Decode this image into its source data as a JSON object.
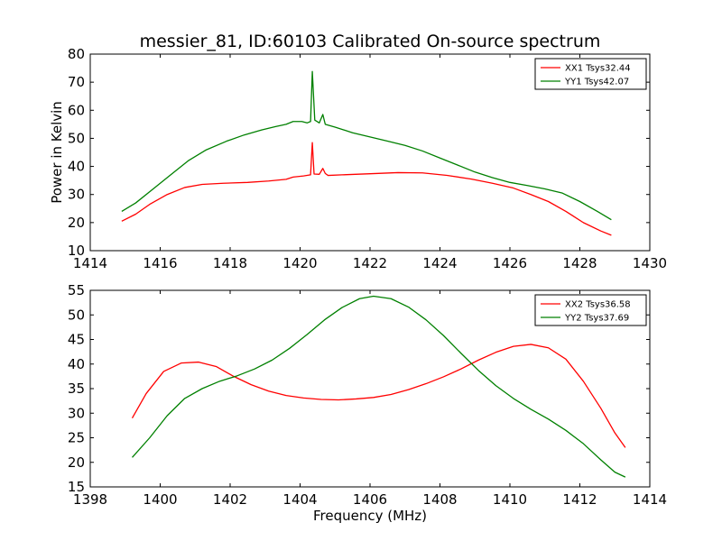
{
  "chart_data": [
    {
      "type": "line",
      "title": "messier_81, ID:60103 Calibrated On-source spectrum",
      "xlabel": "",
      "ylabel": "Power in Kelvin",
      "xlim": [
        1414,
        1430
      ],
      "ylim": [
        10,
        80
      ],
      "xticks": [
        1414,
        1416,
        1418,
        1420,
        1422,
        1424,
        1426,
        1428,
        1430
      ],
      "yticks": [
        10,
        20,
        30,
        40,
        50,
        60,
        70,
        80
      ],
      "legend_position": "top-right",
      "series": [
        {
          "name": "XX1 Tsys32.44",
          "color": "#ff0000",
          "points": [
            [
              1414.9,
              20.5
            ],
            [
              1415.3,
              23
            ],
            [
              1415.7,
              26.5
            ],
            [
              1416.2,
              30
            ],
            [
              1416.7,
              32.5
            ],
            [
              1417.2,
              33.6
            ],
            [
              1417.8,
              34
            ],
            [
              1418.5,
              34.3
            ],
            [
              1419.1,
              34.8
            ],
            [
              1419.6,
              35.4
            ],
            [
              1419.8,
              36.2
            ],
            [
              1420.1,
              36.6
            ],
            [
              1420.3,
              37
            ],
            [
              1420.35,
              48.5
            ],
            [
              1420.4,
              37.3
            ],
            [
              1420.55,
              37.2
            ],
            [
              1420.65,
              39.3
            ],
            [
              1420.72,
              37.5
            ],
            [
              1420.8,
              36.8
            ],
            [
              1421.2,
              37
            ],
            [
              1422,
              37.4
            ],
            [
              1422.8,
              37.8
            ],
            [
              1423.5,
              37.7
            ],
            [
              1424.2,
              36.8
            ],
            [
              1424.9,
              35.5
            ],
            [
              1425.5,
              34
            ],
            [
              1426.1,
              32.3
            ],
            [
              1426.6,
              30
            ],
            [
              1427.1,
              27.5
            ],
            [
              1427.6,
              24
            ],
            [
              1428.1,
              20
            ],
            [
              1428.6,
              17
            ],
            [
              1428.9,
              15.5
            ]
          ]
        },
        {
          "name": "YY1 Tsys42.07",
          "color": "#008000",
          "points": [
            [
              1414.9,
              24
            ],
            [
              1415.3,
              27
            ],
            [
              1415.8,
              32
            ],
            [
              1416.3,
              37
            ],
            [
              1416.8,
              42
            ],
            [
              1417.3,
              45.8
            ],
            [
              1417.9,
              49
            ],
            [
              1418.4,
              51.2
            ],
            [
              1418.9,
              53
            ],
            [
              1419.3,
              54.2
            ],
            [
              1419.6,
              55
            ],
            [
              1419.8,
              56
            ],
            [
              1420.05,
              56
            ],
            [
              1420.2,
              55.5
            ],
            [
              1420.3,
              56
            ],
            [
              1420.35,
              73.8
            ],
            [
              1420.42,
              56.5
            ],
            [
              1420.55,
              55.5
            ],
            [
              1420.65,
              58.5
            ],
            [
              1420.72,
              55
            ],
            [
              1421,
              54
            ],
            [
              1421.5,
              52
            ],
            [
              1422,
              50.5
            ],
            [
              1422.5,
              49
            ],
            [
              1423,
              47.5
            ],
            [
              1423.5,
              45.5
            ],
            [
              1424,
              43
            ],
            [
              1424.5,
              40.5
            ],
            [
              1425,
              38
            ],
            [
              1425.5,
              36
            ],
            [
              1426,
              34.3
            ],
            [
              1426.5,
              33.2
            ],
            [
              1427,
              32
            ],
            [
              1427.5,
              30.5
            ],
            [
              1428,
              27.5
            ],
            [
              1428.5,
              24
            ],
            [
              1428.9,
              21
            ]
          ]
        }
      ]
    },
    {
      "type": "line",
      "title": "",
      "xlabel": "Frequency (MHz)",
      "ylabel": "",
      "xlim": [
        1398,
        1414
      ],
      "ylim": [
        15,
        55
      ],
      "xticks": [
        1398,
        1400,
        1402,
        1404,
        1406,
        1408,
        1410,
        1412,
        1414
      ],
      "yticks": [
        15,
        20,
        25,
        30,
        35,
        40,
        45,
        50,
        55
      ],
      "legend_position": "top-right",
      "series": [
        {
          "name": "XX2 Tsys36.58",
          "color": "#ff0000",
          "points": [
            [
              1399.2,
              29
            ],
            [
              1399.6,
              34
            ],
            [
              1400.1,
              38.5
            ],
            [
              1400.6,
              40.2
            ],
            [
              1401.1,
              40.4
            ],
            [
              1401.6,
              39.5
            ],
            [
              1402.1,
              37.5
            ],
            [
              1402.6,
              35.8
            ],
            [
              1403.1,
              34.5
            ],
            [
              1403.6,
              33.6
            ],
            [
              1404.1,
              33.1
            ],
            [
              1404.6,
              32.8
            ],
            [
              1405.1,
              32.7
            ],
            [
              1405.6,
              32.9
            ],
            [
              1406.1,
              33.2
            ],
            [
              1406.6,
              33.8
            ],
            [
              1407.1,
              34.8
            ],
            [
              1407.6,
              36
            ],
            [
              1408.1,
              37.4
            ],
            [
              1408.6,
              39
            ],
            [
              1409.1,
              40.8
            ],
            [
              1409.6,
              42.4
            ],
            [
              1410.1,
              43.6
            ],
            [
              1410.6,
              44
            ],
            [
              1411.1,
              43.3
            ],
            [
              1411.6,
              41
            ],
            [
              1412.1,
              36.5
            ],
            [
              1412.6,
              31
            ],
            [
              1413.0,
              26
            ],
            [
              1413.3,
              23
            ]
          ]
        },
        {
          "name": "YY2 Tsys37.69",
          "color": "#008000",
          "points": [
            [
              1399.2,
              21
            ],
            [
              1399.7,
              25
            ],
            [
              1400.2,
              29.5
            ],
            [
              1400.7,
              33
            ],
            [
              1401.2,
              35
            ],
            [
              1401.7,
              36.5
            ],
            [
              1402.2,
              37.6
            ],
            [
              1402.7,
              39
            ],
            [
              1403.2,
              40.8
            ],
            [
              1403.7,
              43.2
            ],
            [
              1404.2,
              46
            ],
            [
              1404.7,
              49
            ],
            [
              1405.2,
              51.5
            ],
            [
              1405.7,
              53.3
            ],
            [
              1406.1,
              53.8
            ],
            [
              1406.6,
              53.3
            ],
            [
              1407.1,
              51.6
            ],
            [
              1407.6,
              49
            ],
            [
              1408.1,
              45.8
            ],
            [
              1408.6,
              42.2
            ],
            [
              1409.1,
              38.7
            ],
            [
              1409.6,
              35.6
            ],
            [
              1410.1,
              33
            ],
            [
              1410.6,
              30.8
            ],
            [
              1411.1,
              28.8
            ],
            [
              1411.6,
              26.5
            ],
            [
              1412.1,
              23.8
            ],
            [
              1412.6,
              20.5
            ],
            [
              1413.0,
              18
            ],
            [
              1413.3,
              17
            ]
          ]
        }
      ]
    }
  ]
}
